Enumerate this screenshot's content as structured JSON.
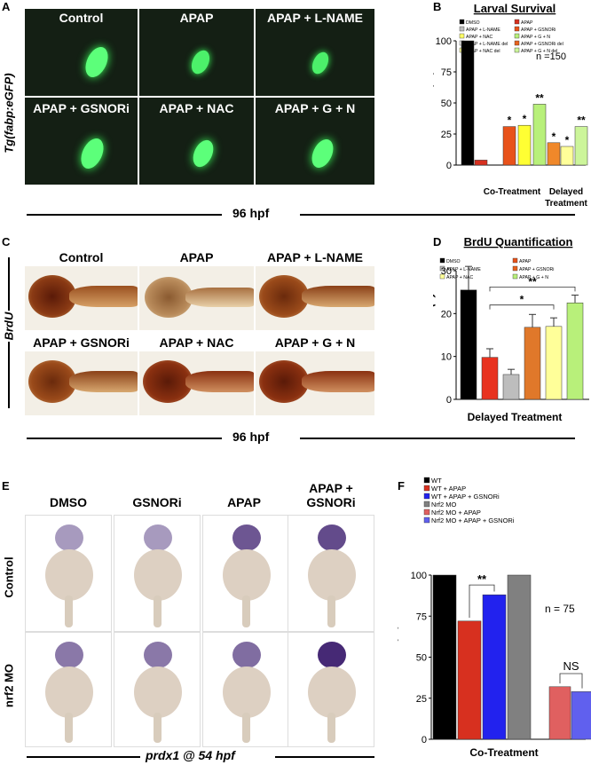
{
  "panel_letters": {
    "a": "A",
    "b": "B",
    "c": "C",
    "d": "D",
    "e": "E",
    "f": "F"
  },
  "panelA": {
    "labels": [
      "Control",
      "APAP",
      "APAP + L-NAME",
      "APAP + GSNORi",
      "APAP + NAC",
      "APAP + G + N"
    ],
    "side_label": "Tg(fabp:eGFP)",
    "stage": "96 hpf"
  },
  "panelC": {
    "labels": [
      "Control",
      "APAP",
      "APAP + L-NAME",
      "APAP + GSNORi",
      "APAP + NAC",
      "APAP + G + N"
    ],
    "side_label": "BrdU",
    "stage": "96 hpf"
  },
  "panelE": {
    "col_labels": [
      "DMSO",
      "GSNORi",
      "APAP",
      "APAP +\nGSNORi"
    ],
    "row_labels": [
      "Control",
      "nrf2 MO"
    ],
    "caption": "prdx1 @ 54 hpf"
  },
  "chart_data": [
    {
      "id": "B",
      "type": "bar",
      "title": "Larval Survival",
      "ylabel": "Survival (%)",
      "ylim": [
        0,
        100
      ],
      "yticks": [
        0,
        25,
        50,
        75,
        100
      ],
      "legend": [
        {
          "name": "DMSO",
          "color": "#000000"
        },
        {
          "name": "APAP",
          "color": "#d7301f"
        },
        {
          "name": "APAP + L-NAME",
          "color": "#bdbdbd"
        },
        {
          "name": "APAP + GSNORi",
          "color": "#e8521a"
        },
        {
          "name": "APAP + NAC",
          "color": "#ffff66"
        },
        {
          "name": "APAP + G + N",
          "color": "#b8f07a"
        },
        {
          "name": "APAP + L-NAME del",
          "color": "#f0f0f0"
        },
        {
          "name": "APAP + GSNORi del",
          "color": "#e8631f"
        },
        {
          "name": "APAP + NAC del",
          "color": "#ffff99"
        },
        {
          "name": "APAP + G + N del",
          "color": "#ccf59a"
        }
      ],
      "bars": [
        {
          "value": 100,
          "color": "#000000",
          "sig": ""
        },
        {
          "value": 4,
          "color": "#d7301f",
          "sig": ""
        },
        {
          "value": 31,
          "color": "#e8521a",
          "sig": "*"
        },
        {
          "value": 32,
          "color": "#ffff33",
          "sig": "*"
        },
        {
          "value": 49,
          "color": "#b8f07a",
          "sig": "**"
        },
        {
          "value": 18,
          "color": "#f0882a",
          "sig": "*"
        },
        {
          "value": 15,
          "color": "#ffff99",
          "sig": "*"
        },
        {
          "value": 31,
          "color": "#ccf59a",
          "sig": "**"
        }
      ],
      "annotation": "n =150",
      "groups": [
        "Co-Treatment",
        "Delayed\nTreatment"
      ]
    },
    {
      "id": "D",
      "type": "bar",
      "title": "BrdU Quantification",
      "ylabel": "BrdU + cells (#)",
      "ylim": [
        0,
        30
      ],
      "yticks": [
        0,
        10,
        20,
        30
      ],
      "legend": [
        {
          "name": "DMSO",
          "color": "#000000"
        },
        {
          "name": "APAP",
          "color": "#e8521a"
        },
        {
          "name": "APAP + L-NAME",
          "color": "#bdbdbd"
        },
        {
          "name": "APAP + GSNORi",
          "color": "#e8631f"
        },
        {
          "name": "APAP + NAC",
          "color": "#ffff99"
        },
        {
          "name": "APAP + G + N",
          "color": "#b8f07a"
        }
      ],
      "bars": [
        {
          "value": 25.5,
          "err": 5.5,
          "color": "#000000"
        },
        {
          "value": 9.8,
          "err": 2.0,
          "color": "#e8321f"
        },
        {
          "value": 5.8,
          "err": 1.2,
          "color": "#bdbdbd"
        },
        {
          "value": 16.8,
          "err": 3.0,
          "color": "#e0782a"
        },
        {
          "value": 17.0,
          "err": 2.0,
          "color": "#ffff99"
        },
        {
          "value": 22.5,
          "err": 1.8,
          "color": "#b8f07a"
        }
      ],
      "sig": [
        "*",
        "**"
      ],
      "xlabel": "Delayed Treatment"
    },
    {
      "id": "F",
      "type": "bar",
      "title": "",
      "ylabel": "Survival (%)",
      "ylim": [
        0,
        100
      ],
      "yticks": [
        0,
        25,
        50,
        75,
        100
      ],
      "legend": [
        {
          "name": "WT",
          "color": "#000000"
        },
        {
          "name": "WT + APAP",
          "color": "#d7301f"
        },
        {
          "name": "WT + APAP + GSNORi",
          "color": "#2222ee"
        },
        {
          "name": "Nrf2 MO",
          "color": "#808080"
        },
        {
          "name": "Nrf2 MO + APAP",
          "color": "#e06060"
        },
        {
          "name": "Nrf2 MO + APAP + GSNORi",
          "color": "#6060ee"
        }
      ],
      "bars": [
        {
          "value": 100,
          "color": "#000000"
        },
        {
          "value": 72,
          "color": "#d7301f"
        },
        {
          "value": 88,
          "color": "#2222ee"
        },
        {
          "value": 100,
          "color": "#808080"
        },
        {
          "value": 32,
          "color": "#e06060"
        },
        {
          "value": 29,
          "color": "#6060ee"
        }
      ],
      "sig": [
        "**",
        "NS"
      ],
      "annotation": "n = 75",
      "xlabel": "Co-Treatment"
    }
  ]
}
